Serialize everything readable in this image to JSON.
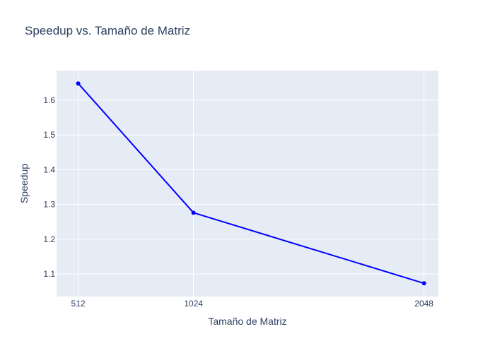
{
  "chart_data": {
    "type": "line",
    "title": "Speedup vs. Tamaño de Matriz",
    "xlabel": "Tamaño de Matriz",
    "ylabel": "Speedup",
    "x": [
      512,
      1024,
      2048
    ],
    "xticks": [
      512,
      1024,
      2048
    ],
    "xlim": [
      416,
      2112
    ],
    "ylim": [
      1.035,
      1.685
    ],
    "yticks": [
      1.1,
      1.2,
      1.3,
      1.4,
      1.5,
      1.6
    ],
    "grid": true,
    "series": [
      {
        "values": [
          1.648,
          1.276,
          1.073
        ],
        "color": "#0000ff",
        "mode": "lines+markers"
      }
    ],
    "colors": {
      "plot_background": "#e5ecf6",
      "grid": "#ffffff",
      "text": "#2a3f5f"
    }
  }
}
